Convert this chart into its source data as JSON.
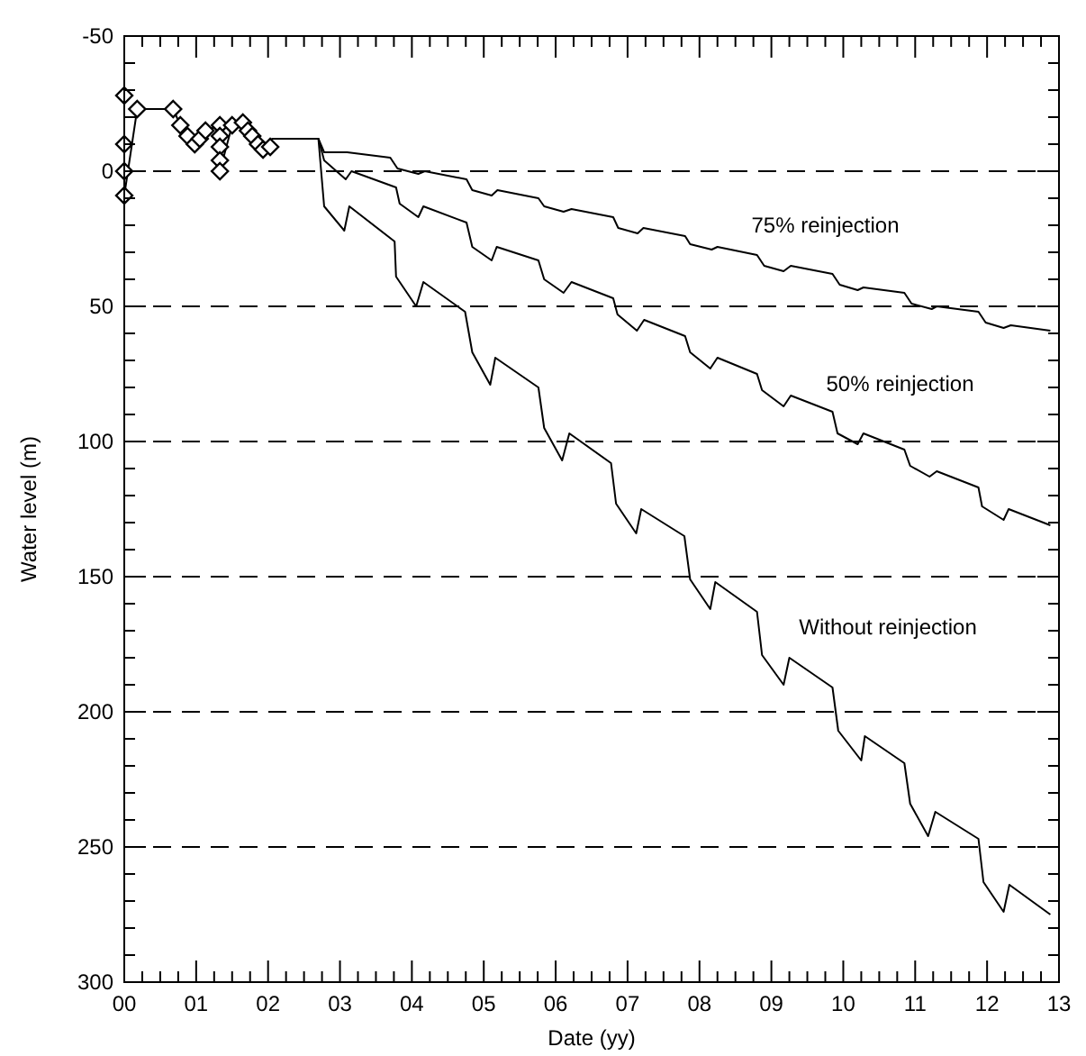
{
  "chart_data": {
    "type": "line",
    "xlabel": "Date (yy)",
    "ylabel": "Water level (m)",
    "xlim": [
      0,
      13
    ],
    "ylim": [
      300,
      -50
    ],
    "xticks": [
      {
        "value": 0,
        "label": "00"
      },
      {
        "value": 0.25,
        "label": null
      },
      {
        "value": 0.5,
        "label": null
      },
      {
        "value": 0.75,
        "label": null
      },
      {
        "value": 1,
        "label": "01"
      },
      {
        "value": 1.25,
        "label": null
      },
      {
        "value": 1.5,
        "label": null
      },
      {
        "value": 1.75,
        "label": null
      },
      {
        "value": 2,
        "label": "02"
      },
      {
        "value": 2.25,
        "label": null
      },
      {
        "value": 2.5,
        "label": null
      },
      {
        "value": 2.75,
        "label": null
      },
      {
        "value": 3,
        "label": "03"
      },
      {
        "value": 3.25,
        "label": null
      },
      {
        "value": 3.5,
        "label": null
      },
      {
        "value": 3.75,
        "label": null
      },
      {
        "value": 4,
        "label": "04"
      },
      {
        "value": 4.25,
        "label": null
      },
      {
        "value": 4.5,
        "label": null
      },
      {
        "value": 4.75,
        "label": null
      },
      {
        "value": 5,
        "label": "05"
      },
      {
        "value": 5.25,
        "label": null
      },
      {
        "value": 5.5,
        "label": null
      },
      {
        "value": 5.75,
        "label": null
      },
      {
        "value": 6,
        "label": "06"
      },
      {
        "value": 6.25,
        "label": null
      },
      {
        "value": 6.5,
        "label": null
      },
      {
        "value": 6.75,
        "label": null
      },
      {
        "value": 7,
        "label": "07"
      },
      {
        "value": 7.25,
        "label": null
      },
      {
        "value": 7.5,
        "label": null
      },
      {
        "value": 7.75,
        "label": null
      },
      {
        "value": 8,
        "label": "08"
      },
      {
        "value": 8.25,
        "label": null
      },
      {
        "value": 8.5,
        "label": null
      },
      {
        "value": 8.75,
        "label": null
      },
      {
        "value": 9,
        "label": "09"
      },
      {
        "value": 9.25,
        "label": null
      },
      {
        "value": 9.5,
        "label": null
      },
      {
        "value": 9.75,
        "label": null
      },
      {
        "value": 10,
        "label": "10"
      },
      {
        "value": 10.25,
        "label": null
      },
      {
        "value": 10.5,
        "label": null
      },
      {
        "value": 10.75,
        "label": null
      },
      {
        "value": 11,
        "label": "11"
      },
      {
        "value": 11.25,
        "label": null
      },
      {
        "value": 11.5,
        "label": null
      },
      {
        "value": 11.75,
        "label": null
      },
      {
        "value": 12,
        "label": "12"
      },
      {
        "value": 12.25,
        "label": null
      },
      {
        "value": 12.5,
        "label": null
      },
      {
        "value": 12.75,
        "label": null
      },
      {
        "value": 13,
        "label": "13"
      }
    ],
    "yticks": [
      -50,
      {
        "value": -40,
        "label": null
      },
      {
        "value": -30,
        "label": null
      },
      {
        "value": -20,
        "label": null
      },
      {
        "value": -10,
        "label": null
      },
      0,
      {
        "value": 10,
        "label": null
      },
      {
        "value": 20,
        "label": null
      },
      {
        "value": 30,
        "label": null
      },
      {
        "value": 40,
        "label": null
      },
      50,
      {
        "value": 60,
        "label": null
      },
      {
        "value": 70,
        "label": null
      },
      {
        "value": 80,
        "label": null
      },
      {
        "value": 90,
        "label": null
      },
      100,
      {
        "value": 110,
        "label": null
      },
      {
        "value": 120,
        "label": null
      },
      {
        "value": 130,
        "label": null
      },
      {
        "value": 140,
        "label": null
      },
      150,
      {
        "value": 160,
        "label": null
      },
      {
        "value": 170,
        "label": null
      },
      {
        "value": 180,
        "label": null
      },
      {
        "value": 190,
        "label": null
      },
      200,
      {
        "value": 210,
        "label": null
      },
      {
        "value": 220,
        "label": null
      },
      {
        "value": 230,
        "label": null
      },
      {
        "value": 240,
        "label": null
      },
      250,
      {
        "value": 260,
        "label": null
      },
      {
        "value": 270,
        "label": null
      },
      {
        "value": 280,
        "label": null
      },
      {
        "value": 290,
        "label": null
      },
      300
    ],
    "grid": "y",
    "series": [
      {
        "color": "#000000",
        "marker": "diamond",
        "x": [
          0,
          0,
          0,
          0,
          0.18,
          0.68,
          0.78,
          0.88,
          0.98,
          1.05,
          1.13,
          1.33,
          1.33,
          1.33,
          1.33,
          1.33,
          1.5,
          1.65,
          1.72,
          1.78,
          1.86,
          1.93,
          2.03
        ],
        "values": [
          -28,
          -10,
          0,
          9,
          -23,
          -23,
          -17,
          -13,
          -10,
          -12,
          -15,
          -17,
          -13,
          -9,
          -4,
          0,
          -17,
          -18,
          -15,
          -13,
          -10,
          -8,
          -9
        ]
      },
      {
        "name": "75% reinjection",
        "color": "#000000",
        "marker": "none",
        "x": [
          2.05,
          2.7,
          2.78,
          3.1,
          3.7,
          3.8,
          4.09,
          4.18,
          4.76,
          4.84,
          5.11,
          5.19,
          5.76,
          5.84,
          6.11,
          6.22,
          6.8,
          6.87,
          7.14,
          7.22,
          7.8,
          7.87,
          8.17,
          8.25,
          8.8,
          8.9,
          9.17,
          9.27,
          9.85,
          9.95,
          10.2,
          10.28,
          10.85,
          10.95,
          11.23,
          11.3,
          11.88,
          11.98,
          12.23,
          12.33,
          12.88
        ],
        "values": [
          -12,
          -12,
          -7,
          -7,
          -5,
          -1,
          1,
          0,
          3,
          7,
          9,
          7,
          10,
          13,
          15,
          14,
          17,
          21,
          23,
          21,
          24,
          27,
          29,
          28,
          31,
          35,
          37,
          35,
          38,
          42,
          44,
          43,
          45,
          49,
          51,
          50,
          52,
          56,
          58,
          57,
          59
        ]
      },
      {
        "name": "50% reinjection",
        "color": "#000000",
        "marker": "none",
        "x": [
          2.05,
          2.7,
          2.78,
          3.08,
          3.16,
          3.78,
          3.83,
          4.09,
          4.16,
          4.76,
          4.84,
          5.11,
          5.18,
          5.76,
          5.84,
          6.11,
          6.22,
          6.8,
          6.86,
          7.13,
          7.23,
          7.8,
          7.87,
          8.15,
          8.25,
          8.8,
          8.87,
          9.17,
          9.27,
          9.85,
          9.92,
          10.2,
          10.28,
          10.85,
          10.93,
          11.2,
          11.3,
          11.88,
          11.93,
          12.23,
          12.3,
          12.88
        ],
        "values": [
          -12,
          -12,
          -4,
          3,
          0,
          6,
          12,
          17,
          13,
          19,
          28,
          33,
          28,
          33,
          40,
          45,
          41,
          47,
          53,
          59,
          55,
          61,
          67,
          73,
          69,
          75,
          81,
          87,
          83,
          89,
          97,
          101,
          97,
          103,
          109,
          113,
          111,
          117,
          124,
          129,
          125,
          131
        ]
      },
      {
        "name": "Without reinjection",
        "color": "#000000",
        "marker": "none",
        "x": [
          2.05,
          2.7,
          2.78,
          3.06,
          3.13,
          3.76,
          3.78,
          4.06,
          4.16,
          4.74,
          4.84,
          5.09,
          5.16,
          5.76,
          5.84,
          6.09,
          6.19,
          6.77,
          6.84,
          7.12,
          7.19,
          7.79,
          7.87,
          8.15,
          8.22,
          8.8,
          8.87,
          9.17,
          9.25,
          9.85,
          9.93,
          10.25,
          10.3,
          10.85,
          10.93,
          11.18,
          11.28,
          11.88,
          11.95,
          12.23,
          12.31,
          12.88
        ],
        "values": [
          -12,
          -12,
          13,
          22,
          13,
          26,
          39,
          50,
          41,
          52,
          67,
          79,
          69,
          80,
          95,
          107,
          97,
          108,
          123,
          134,
          125,
          135,
          151,
          162,
          152,
          163,
          179,
          190,
          180,
          191,
          207,
          218,
          209,
          219,
          234,
          246,
          237,
          247,
          263,
          274,
          264,
          275
        ]
      }
    ]
  }
}
